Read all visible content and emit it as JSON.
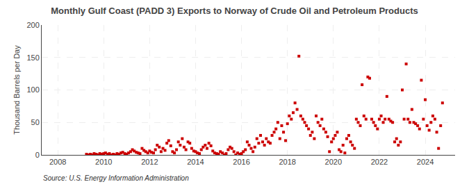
{
  "chart_data": {
    "type": "scatter",
    "title": "Monthly Gulf Coast (PADD 3) Exports to Norway of Crude Oil and Petroleum Products",
    "ylabel": "Thousand Barrels per Day",
    "annotations": [
      "Source: U.S. Energy Information Administration"
    ],
    "color": "#cc0000",
    "marker": "square",
    "grid": true,
    "xlim": [
      2007.3,
      2025.3
    ],
    "xticks": [
      2008,
      2010,
      2012,
      2014,
      2016,
      2018,
      2020,
      2022,
      2024
    ],
    "ylim": [
      0,
      200
    ],
    "yticks": [
      0,
      50,
      100,
      150,
      200
    ],
    "x": [
      2009.25,
      2009.33,
      2009.42,
      2009.5,
      2009.58,
      2009.67,
      2009.75,
      2009.83,
      2009.92,
      2010.0,
      2010.08,
      2010.17,
      2010.25,
      2010.33,
      2010.42,
      2010.5,
      2010.58,
      2010.67,
      2010.75,
      2010.83,
      2010.92,
      2011.0,
      2011.08,
      2011.17,
      2011.25,
      2011.33,
      2011.42,
      2011.5,
      2011.58,
      2011.67,
      2011.75,
      2011.83,
      2011.92,
      2012.0,
      2012.08,
      2012.17,
      2012.25,
      2012.33,
      2012.42,
      2012.5,
      2012.58,
      2012.67,
      2012.75,
      2012.83,
      2012.92,
      2013.0,
      2013.08,
      2013.17,
      2013.25,
      2013.33,
      2013.42,
      2013.5,
      2013.58,
      2013.67,
      2013.75,
      2013.83,
      2013.92,
      2014.0,
      2014.08,
      2014.17,
      2014.25,
      2014.33,
      2014.42,
      2014.5,
      2014.58,
      2014.67,
      2014.75,
      2014.83,
      2014.92,
      2015.0,
      2015.08,
      2015.17,
      2015.25,
      2015.33,
      2015.42,
      2015.5,
      2015.58,
      2015.67,
      2015.75,
      2015.83,
      2015.92,
      2016.0,
      2016.08,
      2016.17,
      2016.25,
      2016.33,
      2016.42,
      2016.5,
      2016.58,
      2016.67,
      2016.75,
      2016.83,
      2016.92,
      2017.0,
      2017.08,
      2017.17,
      2017.25,
      2017.33,
      2017.42,
      2017.5,
      2017.58,
      2017.67,
      2017.75,
      2017.83,
      2017.92,
      2018.0,
      2018.08,
      2018.17,
      2018.25,
      2018.33,
      2018.42,
      2018.5,
      2018.58,
      2018.67,
      2018.75,
      2018.83,
      2018.92,
      2019.0,
      2019.08,
      2019.17,
      2019.25,
      2019.33,
      2019.42,
      2019.5,
      2019.58,
      2019.67,
      2019.75,
      2019.83,
      2019.92,
      2020.0,
      2020.08,
      2020.17,
      2020.25,
      2020.33,
      2020.42,
      2020.5,
      2020.58,
      2020.67,
      2020.75,
      2020.83,
      2020.92,
      2021.0,
      2021.08,
      2021.17,
      2021.25,
      2021.33,
      2021.42,
      2021.5,
      2021.58,
      2021.67,
      2021.75,
      2021.83,
      2021.92,
      2022.0,
      2022.08,
      2022.17,
      2022.25,
      2022.33,
      2022.42,
      2022.5,
      2022.58,
      2022.67,
      2022.75,
      2022.83,
      2022.92,
      2023.0,
      2023.08,
      2023.17,
      2023.25,
      2023.33,
      2023.42,
      2023.5,
      2023.58,
      2023.67,
      2023.75,
      2023.83,
      2023.92,
      2024.0,
      2024.08,
      2024.17,
      2024.25,
      2024.33,
      2024.42,
      2024.5,
      2024.58,
      2024.67,
      2024.75
    ],
    "values": [
      1,
      0,
      1,
      0,
      2,
      1,
      0,
      2,
      1,
      2,
      3,
      1,
      2,
      0,
      1,
      0,
      2,
      1,
      3,
      4,
      2,
      1,
      3,
      5,
      8,
      6,
      4,
      3,
      2,
      10,
      7,
      5,
      3,
      6,
      4,
      3,
      8,
      15,
      12,
      5,
      10,
      7,
      18,
      22,
      14,
      5,
      3,
      8,
      20,
      15,
      25,
      12,
      8,
      20,
      18,
      10,
      6,
      5,
      3,
      2,
      8,
      12,
      15,
      10,
      18,
      14,
      6,
      3,
      2,
      1,
      5,
      3,
      0,
      2,
      8,
      12,
      10,
      5,
      0,
      3,
      1,
      2,
      5,
      8,
      20,
      15,
      10,
      5,
      12,
      25,
      18,
      30,
      20,
      15,
      25,
      20,
      18,
      30,
      35,
      40,
      50,
      25,
      45,
      35,
      22,
      48,
      60,
      55,
      65,
      80,
      70,
      152,
      60,
      55,
      50,
      45,
      40,
      30,
      35,
      25,
      60,
      50,
      45,
      55,
      40,
      35,
      28,
      5,
      20,
      25,
      30,
      35,
      8,
      5,
      15,
      3,
      25,
      30,
      20,
      15,
      10,
      55,
      50,
      45,
      108,
      60,
      55,
      120,
      118,
      55,
      50,
      45,
      40,
      55,
      60,
      50,
      55,
      90,
      55,
      52,
      50,
      20,
      25,
      15,
      20,
      100,
      55,
      140,
      55,
      50,
      70,
      50,
      48,
      45,
      40,
      115,
      55,
      85,
      45,
      38,
      50,
      60,
      55,
      35,
      10,
      45,
      80
    ]
  }
}
